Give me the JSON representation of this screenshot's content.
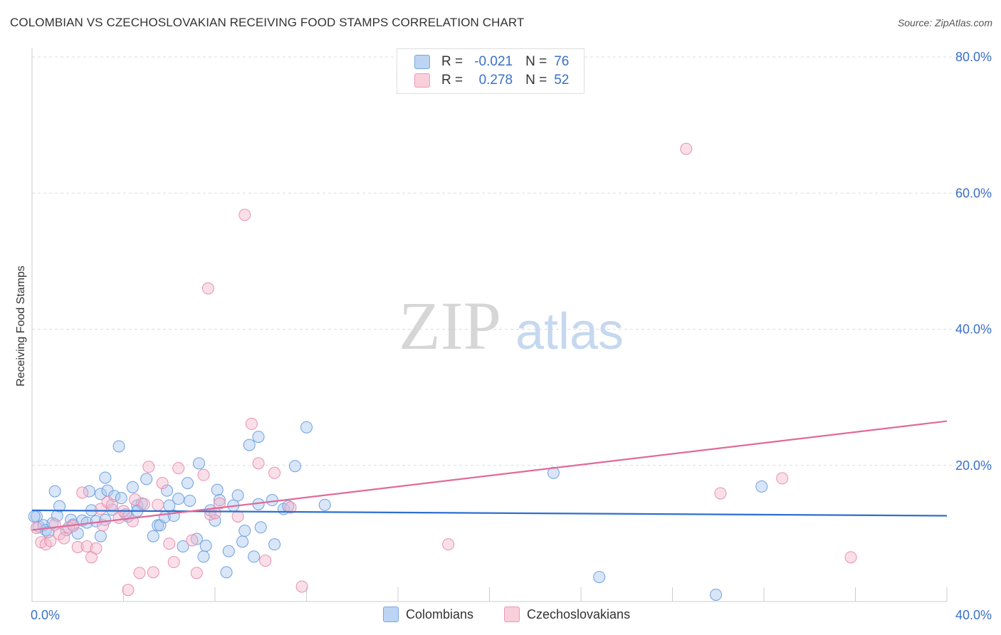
{
  "header": {
    "title": "COLOMBIAN VS CZECHOSLOVAKIAN RECEIVING FOOD STAMPS CORRELATION CHART",
    "source": "Source: ZipAtlas.com"
  },
  "watermark": {
    "zip": "ZIP",
    "atlas": "atlas"
  },
  "legend": {
    "rows": [
      {
        "r_label": "R =",
        "r_value": "-0.021",
        "n_label": "N =",
        "n_value": "76",
        "color": "#a8c8f0"
      },
      {
        "r_label": "R =",
        "r_value": "0.278",
        "n_label": "N =",
        "n_value": "52",
        "color": "#f5b8cc"
      }
    ]
  },
  "bottom_legend": [
    {
      "label": "Colombians",
      "color": "#a8c8f0"
    },
    {
      "label": "Czechoslovakians",
      "color": "#f5b8cc"
    }
  ],
  "chart_data": {
    "type": "scatter",
    "title": "COLOMBIAN VS CZECHOSLOVAKIAN RECEIVING FOOD STAMPS CORRELATION CHART",
    "xlabel": "",
    "ylabel": "Receiving Food Stamps",
    "xlim": [
      0,
      40
    ],
    "ylim": [
      0,
      80
    ],
    "x_tick_labels": [
      "0.0%",
      "40.0%"
    ],
    "y_ticks": [
      20,
      40,
      60,
      80
    ],
    "y_tick_labels": [
      "20.0%",
      "40.0%",
      "60.0%",
      "80.0%"
    ],
    "grid": true,
    "legend_position": "top-center",
    "series": [
      {
        "name": "Colombians",
        "color": "#6fa0e0",
        "fill": "#a8c8f0",
        "trend": {
          "x": [
            0,
            40
          ],
          "y": [
            13.4,
            12.6
          ],
          "color": "#2e6fd0"
        },
        "points": [
          [
            0.2,
            12.5
          ],
          [
            0.3,
            11.0
          ],
          [
            0.5,
            11.2
          ],
          [
            0.6,
            10.5
          ],
          [
            0.7,
            10.2
          ],
          [
            0.9,
            11.5
          ],
          [
            1.0,
            16.2
          ],
          [
            1.1,
            12.6
          ],
          [
            1.2,
            14.0
          ],
          [
            1.5,
            10.5
          ],
          [
            1.7,
            12.0
          ],
          [
            1.8,
            11.3
          ],
          [
            2.0,
            10.0
          ],
          [
            2.2,
            11.9
          ],
          [
            2.4,
            11.6
          ],
          [
            2.5,
            16.2
          ],
          [
            2.6,
            13.4
          ],
          [
            2.8,
            11.8
          ],
          [
            3.0,
            9.6
          ],
          [
            3.0,
            15.8
          ],
          [
            3.2,
            18.2
          ],
          [
            3.3,
            16.3
          ],
          [
            3.5,
            13.5
          ],
          [
            3.6,
            15.5
          ],
          [
            3.8,
            22.8
          ],
          [
            3.9,
            15.2
          ],
          [
            4.1,
            12.8
          ],
          [
            4.2,
            12.5
          ],
          [
            4.4,
            16.8
          ],
          [
            4.6,
            14.1
          ],
          [
            4.8,
            14.4
          ],
          [
            5.0,
            18.0
          ],
          [
            5.3,
            9.6
          ],
          [
            5.5,
            11.2
          ],
          [
            5.6,
            11.2
          ],
          [
            5.8,
            12.4
          ],
          [
            5.9,
            16.3
          ],
          [
            6.0,
            14.1
          ],
          [
            6.2,
            12.6
          ],
          [
            6.4,
            15.1
          ],
          [
            6.6,
            8.1
          ],
          [
            6.8,
            17.4
          ],
          [
            6.9,
            14.8
          ],
          [
            7.2,
            9.2
          ],
          [
            7.3,
            20.3
          ],
          [
            7.5,
            6.6
          ],
          [
            7.6,
            8.2
          ],
          [
            7.8,
            13.4
          ],
          [
            8.0,
            11.9
          ],
          [
            8.1,
            16.4
          ],
          [
            8.2,
            14.9
          ],
          [
            8.5,
            4.3
          ],
          [
            8.6,
            7.4
          ],
          [
            8.8,
            14.1
          ],
          [
            9.0,
            15.6
          ],
          [
            9.2,
            8.8
          ],
          [
            9.3,
            10.4
          ],
          [
            9.5,
            23.0
          ],
          [
            9.9,
            24.2
          ],
          [
            9.7,
            6.6
          ],
          [
            10.0,
            10.9
          ],
          [
            10.5,
            14.9
          ],
          [
            11.0,
            13.6
          ],
          [
            11.2,
            14.0
          ],
          [
            11.5,
            19.9
          ],
          [
            12.0,
            25.6
          ],
          [
            12.8,
            14.2
          ],
          [
            22.8,
            18.9
          ],
          [
            24.8,
            3.6
          ],
          [
            29.9,
            1.0
          ],
          [
            31.9,
            16.9
          ],
          [
            9.9,
            14.3
          ],
          [
            4.6,
            13.3
          ],
          [
            0.1,
            12.5
          ],
          [
            10.6,
            8.4
          ],
          [
            3.2,
            12.0
          ]
        ]
      },
      {
        "name": "Czechoslovakians",
        "color": "#e890b0",
        "fill": "#f5b8cc",
        "trend": {
          "x": [
            0,
            40
          ],
          "y": [
            10.5,
            26.5
          ],
          "color": "#e06a98"
        },
        "points": [
          [
            0.2,
            10.8
          ],
          [
            0.4,
            8.7
          ],
          [
            0.6,
            8.4
          ],
          [
            0.8,
            8.9
          ],
          [
            1.0,
            11.3
          ],
          [
            1.2,
            9.9
          ],
          [
            1.4,
            9.3
          ],
          [
            1.6,
            10.9
          ],
          [
            1.8,
            11.1
          ],
          [
            2.0,
            8.0
          ],
          [
            2.2,
            16.0
          ],
          [
            2.4,
            8.1
          ],
          [
            2.6,
            6.5
          ],
          [
            2.8,
            7.8
          ],
          [
            3.0,
            13.6
          ],
          [
            3.1,
            11.2
          ],
          [
            3.3,
            14.6
          ],
          [
            3.5,
            14.2
          ],
          [
            3.8,
            12.3
          ],
          [
            4.0,
            13.3
          ],
          [
            4.2,
            1.7
          ],
          [
            4.4,
            11.8
          ],
          [
            4.5,
            15.0
          ],
          [
            4.7,
            4.2
          ],
          [
            4.9,
            14.3
          ],
          [
            5.1,
            19.8
          ],
          [
            5.3,
            4.3
          ],
          [
            5.5,
            14.2
          ],
          [
            5.7,
            17.4
          ],
          [
            6.0,
            8.5
          ],
          [
            6.2,
            5.8
          ],
          [
            6.4,
            19.6
          ],
          [
            7.0,
            9.0
          ],
          [
            7.2,
            4.2
          ],
          [
            7.5,
            18.6
          ],
          [
            7.8,
            12.8
          ],
          [
            8.0,
            13.0
          ],
          [
            8.2,
            14.4
          ],
          [
            9.0,
            12.5
          ],
          [
            9.6,
            26.1
          ],
          [
            9.9,
            20.3
          ],
          [
            10.2,
            6.0
          ],
          [
            10.6,
            18.9
          ],
          [
            11.3,
            13.8
          ],
          [
            11.8,
            2.2
          ],
          [
            18.2,
            8.4
          ],
          [
            7.7,
            46.0
          ],
          [
            9.3,
            56.8
          ],
          [
            28.6,
            66.5
          ],
          [
            30.1,
            15.9
          ],
          [
            32.8,
            18.1
          ],
          [
            35.8,
            6.5
          ]
        ]
      }
    ]
  }
}
